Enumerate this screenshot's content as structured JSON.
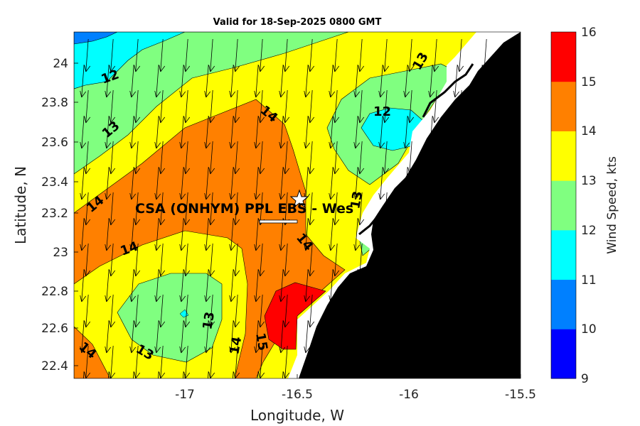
{
  "title": "Valid for 18-Sep-2025 0800 GMT",
  "map": {
    "xlabel": "Longitude, W",
    "ylabel": "Latitude, N",
    "x_ticks": [
      "-17",
      "-16.5",
      "-16",
      "-15.5"
    ],
    "y_ticks": [
      "24",
      "23.8",
      "23.6",
      "23.4",
      "23.2",
      "23",
      "22.8",
      "22.6",
      "22.4"
    ],
    "site_label": "CSA (ONHYM) PPL EBS  - Wes",
    "contour_labels": [
      "12",
      "13",
      "14",
      "14",
      "14",
      "12",
      "13",
      "13",
      "14",
      "13",
      "14",
      "14",
      "13",
      "15"
    ]
  },
  "colorbar": {
    "label": "Wind Speed, kts",
    "ticks": [
      "9",
      "10",
      "11",
      "12",
      "13",
      "14",
      "15",
      "16"
    ],
    "colors": [
      "#0000ff",
      "#0080ff",
      "#00ffff",
      "#80ff80",
      "#ffff00",
      "#ff8000",
      "#ff0000"
    ]
  },
  "colors": {
    "land": "#000000",
    "coast_gap": "#ffffff"
  }
}
